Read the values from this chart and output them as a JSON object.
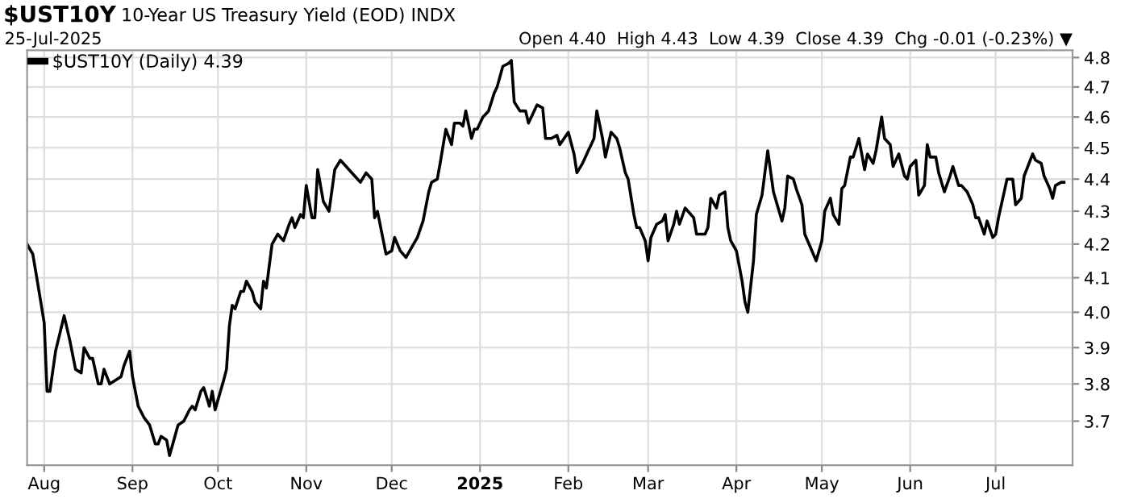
{
  "chart_data": {
    "type": "line",
    "title": "$UST10Y",
    "subtitle": "10-Year US Treasury Yield (EOD) INDX",
    "annotations": [
      "25-Jul-2025",
      "Open 4.40  High 4.43  Low 4.39  Close 4.39  Chg -0.01 (-0.23%) ▼"
    ],
    "log": "y",
    "grid": true,
    "legend": "top left",
    "xlim": [
      "2024-07-26",
      "2025-07-28"
    ],
    "xticks": [
      {
        "value": "2024-08-01",
        "label": "Aug"
      },
      {
        "value": "2024-09-01",
        "label": "Sep"
      },
      {
        "value": "2024-10-01",
        "label": "Oct"
      },
      {
        "value": "2024-11-01",
        "label": "Nov"
      },
      {
        "value": "2024-12-01",
        "label": "Dec"
      },
      {
        "value": "2025-01-01",
        "label": "2025"
      },
      {
        "value": "2025-02-01",
        "label": "Feb"
      },
      {
        "value": "2025-03-01",
        "label": "Mar"
      },
      {
        "value": "2025-04-01",
        "label": "Apr"
      },
      {
        "value": "2025-05-01",
        "label": "May"
      },
      {
        "value": "2025-06-01",
        "label": "Jun"
      },
      {
        "value": "2025-07-01",
        "label": "Jul"
      }
    ],
    "ylim": [
      3.585,
      4.825
    ],
    "yticks": [
      3.7,
      3.8,
      3.9,
      {
        "value": 4.0,
        "label": "4.0"
      },
      4.1,
      4.2,
      4.3,
      4.4,
      4.5,
      4.6,
      4.7,
      4.8
    ],
    "series": [
      {
        "name": "$UST10Y (Daily) 4.39",
        "color": "#000000",
        "x": [
          "2024-07-26",
          "2024-07-28",
          "2024-07-29",
          "2024-07-31",
          "2024-08-01",
          "2024-08-02",
          "2024-08-03",
          "2024-08-05",
          "2024-08-08",
          "2024-08-10",
          "2024-08-12",
          "2024-08-14",
          "2024-08-15",
          "2024-08-17",
          "2024-08-18",
          "2024-08-20",
          "2024-08-21",
          "2024-08-22",
          "2024-08-24",
          "2024-08-28",
          "2024-08-29",
          "2024-08-31",
          "2024-09-01",
          "2024-09-03",
          "2024-09-05",
          "2024-09-07",
          "2024-09-09",
          "2024-09-10",
          "2024-09-11",
          "2024-09-13",
          "2024-09-14",
          "2024-09-17",
          "2024-09-19",
          "2024-09-21",
          "2024-09-22",
          "2024-09-23",
          "2024-09-25",
          "2024-09-26",
          "2024-09-28",
          "2024-09-29",
          "2024-09-30",
          "2024-10-03",
          "2024-10-04",
          "2024-10-05",
          "2024-10-06",
          "2024-10-07",
          "2024-10-09",
          "2024-10-10",
          "2024-10-11",
          "2024-10-13",
          "2024-10-14",
          "2024-10-16",
          "2024-10-17",
          "2024-10-18",
          "2024-10-20",
          "2024-10-22",
          "2024-10-24",
          "2024-10-26",
          "2024-10-27",
          "2024-10-28",
          "2024-10-30",
          "2024-10-31",
          "2024-11-01",
          "2024-11-03",
          "2024-11-04",
          "2024-11-05",
          "2024-11-07",
          "2024-11-09",
          "2024-11-11",
          "2024-11-13",
          "2024-11-15",
          "2024-11-16",
          "2024-11-18",
          "2024-11-20",
          "2024-11-22",
          "2024-11-24",
          "2024-11-25",
          "2024-11-26",
          "2024-11-29",
          "2024-12-01",
          "2024-12-02",
          "2024-12-04",
          "2024-12-06",
          "2024-12-08",
          "2024-12-10",
          "2024-12-12",
          "2024-12-14",
          "2024-12-15",
          "2024-12-17",
          "2024-12-18",
          "2024-12-20",
          "2024-12-22",
          "2024-12-23",
          "2024-12-25",
          "2024-12-26",
          "2024-12-27",
          "2024-12-29",
          "2024-12-30",
          "2024-12-31",
          "2025-01-02",
          "2025-01-04",
          "2025-01-06",
          "2025-01-07",
          "2025-01-09",
          "2025-01-11",
          "2025-01-12",
          "2025-01-13",
          "2025-01-15",
          "2025-01-17",
          "2025-01-18",
          "2025-01-19",
          "2025-01-21",
          "2025-01-23",
          "2025-01-24",
          "2025-01-26",
          "2025-01-28",
          "2025-01-29",
          "2025-02-01",
          "2025-02-03",
          "2025-02-04",
          "2025-02-06",
          "2025-02-08",
          "2025-02-09",
          "2025-02-10",
          "2025-02-11",
          "2025-02-13",
          "2025-02-14",
          "2025-02-16",
          "2025-02-18",
          "2025-02-19",
          "2025-02-21",
          "2025-02-22",
          "2025-02-24",
          "2025-02-25",
          "2025-02-26",
          "2025-02-28",
          "2025-03-01",
          "2025-03-02",
          "2025-03-04",
          "2025-03-06",
          "2025-03-07",
          "2025-03-08",
          "2025-03-10",
          "2025-03-11",
          "2025-03-12",
          "2025-03-14",
          "2025-03-17",
          "2025-03-18",
          "2025-03-21",
          "2025-03-22",
          "2025-03-23",
          "2025-03-25",
          "2025-03-26",
          "2025-03-28",
          "2025-03-29",
          "2025-03-30",
          "2025-04-01",
          "2025-04-03",
          "2025-04-04",
          "2025-04-05",
          "2025-04-07",
          "2025-04-08",
          "2025-04-10",
          "2025-04-11",
          "2025-04-12",
          "2025-04-14",
          "2025-04-17",
          "2025-04-18",
          "2025-04-19",
          "2025-04-21",
          "2025-04-22",
          "2025-04-24",
          "2025-04-25",
          "2025-04-27",
          "2025-04-29",
          "2025-05-01",
          "2025-05-02",
          "2025-05-04",
          "2025-05-05",
          "2025-05-07",
          "2025-05-08",
          "2025-05-09",
          "2025-05-11",
          "2025-05-12",
          "2025-05-14",
          "2025-05-16",
          "2025-05-17",
          "2025-05-19",
          "2025-05-20",
          "2025-05-22",
          "2025-05-23",
          "2025-05-25",
          "2025-05-26",
          "2025-05-28",
          "2025-05-30",
          "2025-05-31",
          "2025-06-01",
          "2025-06-03",
          "2025-06-04",
          "2025-06-06",
          "2025-06-07",
          "2025-06-08",
          "2025-06-10",
          "2025-06-11",
          "2025-06-13",
          "2025-06-15",
          "2025-06-16",
          "2025-06-18",
          "2025-06-19",
          "2025-06-21",
          "2025-06-23",
          "2025-06-24",
          "2025-06-25",
          "2025-06-27",
          "2025-06-28",
          "2025-06-30",
          "2025-07-01",
          "2025-07-02",
          "2025-07-04",
          "2025-07-05",
          "2025-07-07",
          "2025-07-08",
          "2025-07-10",
          "2025-07-11",
          "2025-07-14",
          "2025-07-15",
          "2025-07-17",
          "2025-07-18",
          "2025-07-20",
          "2025-07-21",
          "2025-07-22",
          "2025-07-24",
          "2025-07-25"
        ],
        "values": [
          4.2,
          4.17,
          4.12,
          4.02,
          3.97,
          3.78,
          3.78,
          3.89,
          3.99,
          3.92,
          3.84,
          3.83,
          3.9,
          3.87,
          3.87,
          3.8,
          3.8,
          3.84,
          3.8,
          3.82,
          3.85,
          3.89,
          3.82,
          3.74,
          3.71,
          3.69,
          3.64,
          3.64,
          3.66,
          3.65,
          3.61,
          3.69,
          3.7,
          3.73,
          3.74,
          3.73,
          3.78,
          3.79,
          3.74,
          3.78,
          3.73,
          3.81,
          3.84,
          3.96,
          4.02,
          4.01,
          4.06,
          4.06,
          4.09,
          4.06,
          4.03,
          4.01,
          4.09,
          4.07,
          4.2,
          4.23,
          4.21,
          4.26,
          4.28,
          4.25,
          4.29,
          4.28,
          4.38,
          4.28,
          4.28,
          4.43,
          4.33,
          4.3,
          4.43,
          4.46,
          4.44,
          4.43,
          4.41,
          4.39,
          4.42,
          4.4,
          4.28,
          4.3,
          4.17,
          4.18,
          4.22,
          4.18,
          4.16,
          4.19,
          4.22,
          4.27,
          4.36,
          4.39,
          4.4,
          4.45,
          4.56,
          4.51,
          4.58,
          4.58,
          4.57,
          4.62,
          4.53,
          4.56,
          4.56,
          4.6,
          4.62,
          4.68,
          4.7,
          4.77,
          4.78,
          4.79,
          4.65,
          4.62,
          4.62,
          4.58,
          4.6,
          4.64,
          4.63,
          4.53,
          4.53,
          4.54,
          4.51,
          4.55,
          4.48,
          4.42,
          4.45,
          4.49,
          4.51,
          4.53,
          4.62,
          4.53,
          4.47,
          4.55,
          4.53,
          4.5,
          4.42,
          4.4,
          4.29,
          4.25,
          4.25,
          4.21,
          4.15,
          4.22,
          4.26,
          4.27,
          4.29,
          4.21,
          4.26,
          4.3,
          4.26,
          4.31,
          4.28,
          4.23,
          4.23,
          4.25,
          4.34,
          4.31,
          4.35,
          4.36,
          4.25,
          4.21,
          4.18,
          4.09,
          4.03,
          4.0,
          4.15,
          4.29,
          4.35,
          4.42,
          4.49,
          4.36,
          4.27,
          4.31,
          4.41,
          4.4,
          4.37,
          4.32,
          4.23,
          4.19,
          4.15,
          4.21,
          4.3,
          4.34,
          4.29,
          4.26,
          4.37,
          4.38,
          4.47,
          4.47,
          4.53,
          4.43,
          4.48,
          4.45,
          4.49,
          4.6,
          4.53,
          4.51,
          4.44,
          4.48,
          4.41,
          4.4,
          4.44,
          4.46,
          4.35,
          4.38,
          4.51,
          4.47,
          4.47,
          4.42,
          4.36,
          4.41,
          4.44,
          4.38,
          4.38,
          4.36,
          4.32,
          4.28,
          4.28,
          4.23,
          4.27,
          4.22,
          4.23,
          4.28,
          4.36,
          4.4,
          4.4,
          4.32,
          4.34,
          4.41,
          4.48,
          4.46,
          4.45,
          4.41,
          4.37,
          4.34,
          4.38,
          4.39,
          4.39
        ]
      }
    ]
  }
}
